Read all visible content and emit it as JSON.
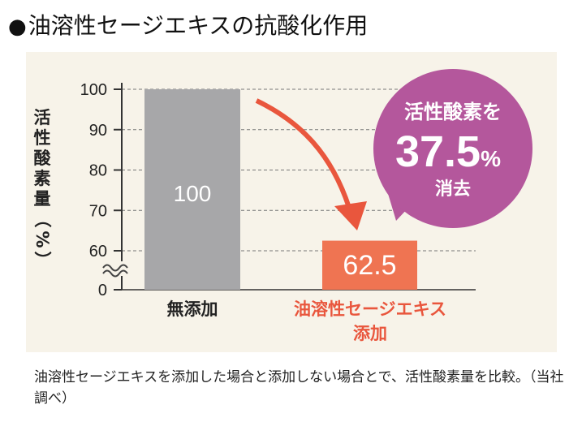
{
  "title": "油溶性セージエキスの抗酸化作用",
  "chart_data": {
    "type": "bar",
    "categories": [
      "無添加",
      "油溶性セージエキス\n添加"
    ],
    "values": [
      100,
      62.5
    ],
    "value_labels": [
      "100",
      "62.5"
    ],
    "ylabel": "活性酸素量（%）",
    "yticks": [
      0,
      60,
      70,
      80,
      90,
      100
    ],
    "ylim": [
      0,
      100
    ],
    "axis_break": true,
    "grid": "dashed",
    "bar_colors": [
      "#a7a7a9",
      "#ef7452"
    ],
    "callout": {
      "line1": "活性酸素を",
      "value": "37.5",
      "unit": "%",
      "line2": "消去",
      "color": "#b4579c"
    },
    "arrow_color": "#e9563d",
    "category_label_colors": [
      "#222222",
      "#e9563d"
    ]
  },
  "caption": "油溶性セージエキスを添加した場合と添加しない場合とで、活性酸素量を比較。（当社調べ）"
}
